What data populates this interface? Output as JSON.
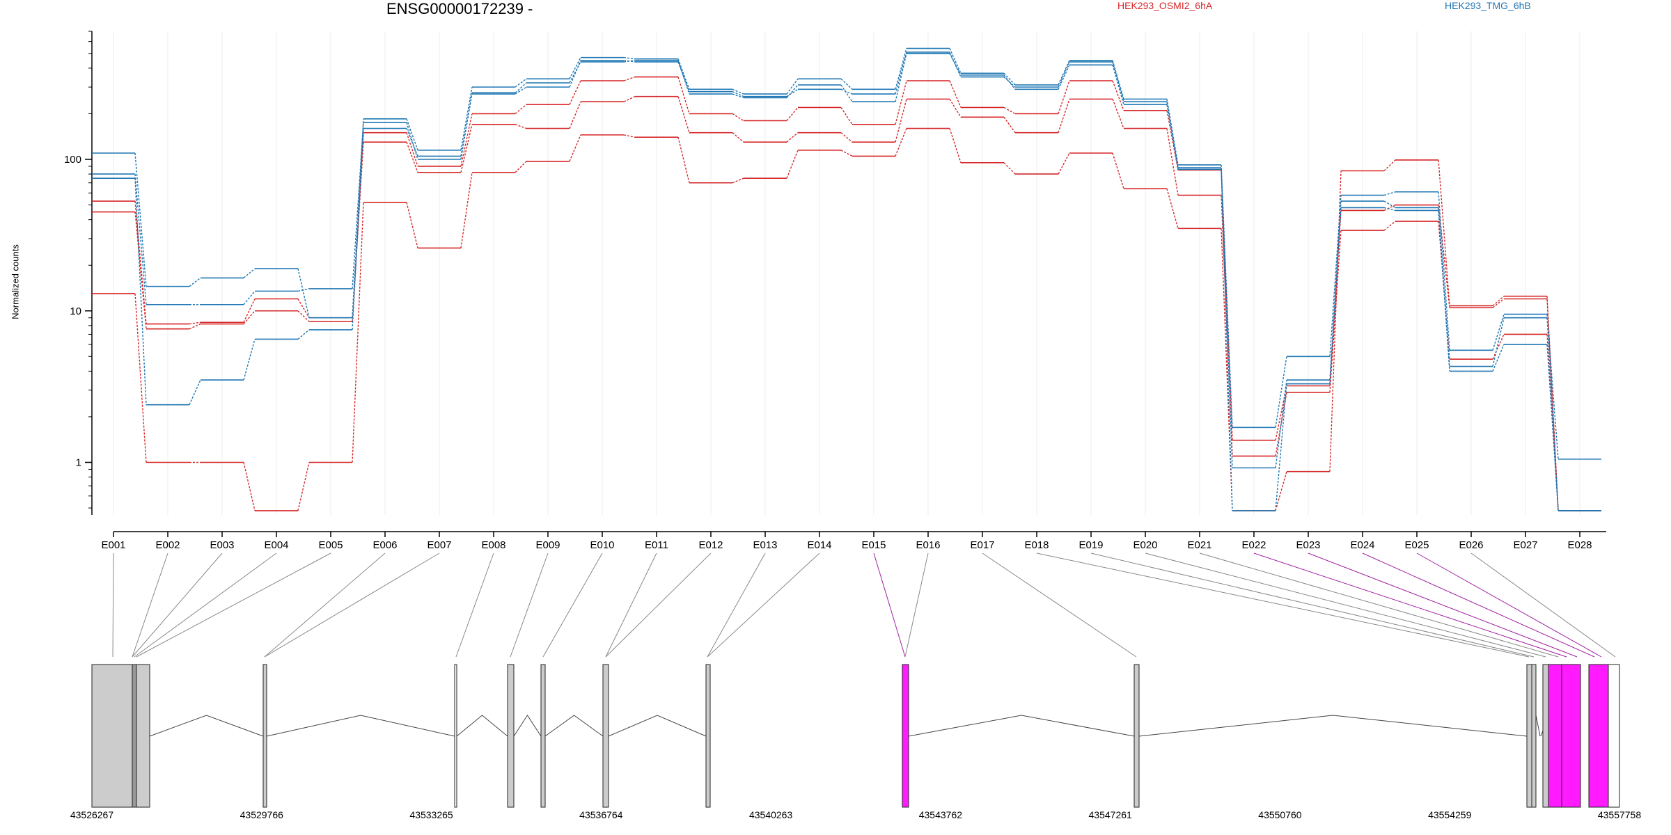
{
  "title": "ENSG00000172239 -",
  "legend": [
    {
      "name": "HEK293_OSMI2_6hA",
      "color": "#d62728"
    },
    {
      "name": "HEK293_TMG_6hB",
      "color": "#1f77b4"
    }
  ],
  "chart_data": {
    "type": "line",
    "scale": "log",
    "ylabel": "Normalized counts",
    "yticks": [
      1,
      10,
      100
    ],
    "ylim": [
      0.45,
      700
    ],
    "grid": "vertical only, light",
    "categories": [
      "E001",
      "E002",
      "E003",
      "E004",
      "E005",
      "E006",
      "E007",
      "E008",
      "E009",
      "E010",
      "E011",
      "E012",
      "E013",
      "E014",
      "E015",
      "E016",
      "E017",
      "E018",
      "E019",
      "E020",
      "E021",
      "E022",
      "E023",
      "E024",
      "E025",
      "E026",
      "E027",
      "E028"
    ],
    "series": [
      {
        "group": "HEK293_OSMI2_6hA",
        "values": [
          53,
          8.2,
          8.4,
          12,
          9,
          150,
          90,
          200,
          230,
          330,
          350,
          200,
          180,
          220,
          170,
          330,
          220,
          200,
          330,
          210,
          85,
          1.4,
          3.2,
          46,
          50,
          10.5,
          12,
          0.48
        ]
      },
      {
        "group": "HEK293_OSMI2_6hA",
        "values": [
          45,
          7.6,
          8.2,
          10,
          8.5,
          130,
          82,
          170,
          160,
          240,
          260,
          150,
          130,
          150,
          130,
          250,
          190,
          150,
          250,
          160,
          58,
          1.1,
          2.9,
          34,
          39,
          4.8,
          7,
          0.48
        ]
      },
      {
        "group": "HEK293_OSMI2_6hA",
        "values": [
          13,
          1,
          1,
          0.48,
          1,
          52,
          26,
          82,
          97,
          145,
          140,
          70,
          75,
          115,
          105,
          160,
          95,
          80,
          110,
          64,
          35,
          0.48,
          0.87,
          84,
          99,
          10.8,
          12.5,
          0.48
        ]
      },
      {
        "group": "HEK293_TMG_6hB",
        "values": [
          110,
          14.5,
          16.5,
          19,
          9,
          185,
          115,
          300,
          340,
          470,
          460,
          290,
          270,
          340,
          290,
          540,
          370,
          310,
          450,
          250,
          92,
          1.7,
          5,
          58,
          61,
          5.5,
          9.5,
          1.05
        ]
      },
      {
        "group": "HEK293_TMG_6hB",
        "values": [
          80,
          11,
          11,
          13.5,
          14,
          175,
          100,
          275,
          320,
          440,
          450,
          270,
          255,
          310,
          240,
          500,
          360,
          290,
          420,
          230,
          88,
          0.92,
          3.5,
          53,
          48,
          4.3,
          9,
          0.48
        ]
      },
      {
        "group": "HEK293_TMG_6hB",
        "values": [
          75,
          2.4,
          3.5,
          6.5,
          7.5,
          160,
          105,
          270,
          300,
          450,
          440,
          280,
          260,
          290,
          270,
          510,
          350,
          300,
          440,
          240,
          86,
          0.48,
          3.3,
          48,
          46,
          4,
          6,
          0.48
        ]
      }
    ]
  },
  "gene_model": {
    "start": "43526267",
    "end": "43557758",
    "axis_ticks": [
      "43526267",
      "43529766",
      "43533265",
      "43536764",
      "43540263",
      "43543762",
      "43547261",
      "43550760",
      "43554259",
      "43557758"
    ],
    "highlight_color": "#ff1aff",
    "highlighted_exons": [
      "E017",
      "E024",
      "E025",
      "E026",
      "E027"
    ]
  }
}
